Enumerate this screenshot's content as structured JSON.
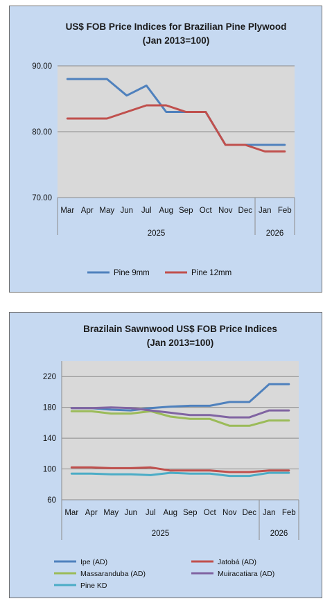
{
  "chart_data": [
    {
      "type": "line",
      "title": "US$ FOB Price Indices for Brazilian  Pine Plywood",
      "subtitle": "(Jan 2013=100)",
      "categories": [
        "Mar",
        "Apr",
        "May",
        "Jun",
        "Jul",
        "Aug",
        "Sep",
        "Oct",
        "Nov",
        "Dec",
        "Jan",
        "Feb"
      ],
      "year_groups": [
        {
          "label": "2025",
          "span": 10
        },
        {
          "label": "2026",
          "span": 2
        }
      ],
      "y_ticks": [
        "90.00",
        "80.00",
        "70.00"
      ],
      "ylim": [
        70,
        90
      ],
      "grid": true,
      "legend_position": "bottom",
      "series": [
        {
          "name": "Pine 9mm",
          "color": "#4f81bd",
          "values": [
            88,
            88,
            88,
            85.5,
            87,
            83,
            83,
            83,
            78,
            78,
            78,
            78
          ]
        },
        {
          "name": "Pine 12mm",
          "color": "#c0504d",
          "values": [
            82,
            82,
            82,
            83,
            84,
            84,
            83,
            83,
            78,
            78,
            77,
            77
          ]
        }
      ]
    },
    {
      "type": "line",
      "title": "Brazilain Sawnwood US$ FOB Price Indices",
      "subtitle": "(Jan 2013=100)",
      "categories": [
        "Mar",
        "Apr",
        "May",
        "Jun",
        "Jul",
        "Aug",
        "Sep",
        "Oct",
        "Nov",
        "Dec",
        "Jan",
        "Feb"
      ],
      "year_groups": [
        {
          "label": "2025",
          "span": 10
        },
        {
          "label": "2026",
          "span": 2
        }
      ],
      "y_ticks": [
        "220",
        "180",
        "140",
        "100",
        "60"
      ],
      "ylim": [
        60,
        240
      ],
      "grid": true,
      "legend_position": "bottom",
      "series": [
        {
          "name": "Ipe (AD)",
          "color": "#4f81bd",
          "values": [
            179,
            179,
            177,
            176,
            179,
            181,
            182,
            182,
            187,
            187,
            210,
            210
          ]
        },
        {
          "name": "Jatobá (AD)",
          "color": "#c0504d",
          "values": [
            102,
            102,
            101,
            101,
            102,
            98,
            98,
            98,
            96,
            96,
            98,
            98
          ]
        },
        {
          "name": "Massaranduba (AD)",
          "color": "#9bbb59",
          "values": [
            175,
            175,
            172,
            172,
            175,
            168,
            165,
            165,
            156,
            156,
            163,
            163
          ]
        },
        {
          "name": "Muiracatiara (AD)",
          "color": "#8064a2",
          "values": [
            179,
            179,
            180,
            179,
            176,
            173,
            170,
            170,
            167,
            167,
            176,
            176
          ]
        },
        {
          "name": "Pine KD",
          "color": "#4bacc6",
          "values": [
            94,
            94,
            93,
            93,
            92,
            95,
            94,
            94,
            91,
            91,
            95,
            95
          ]
        }
      ]
    }
  ]
}
